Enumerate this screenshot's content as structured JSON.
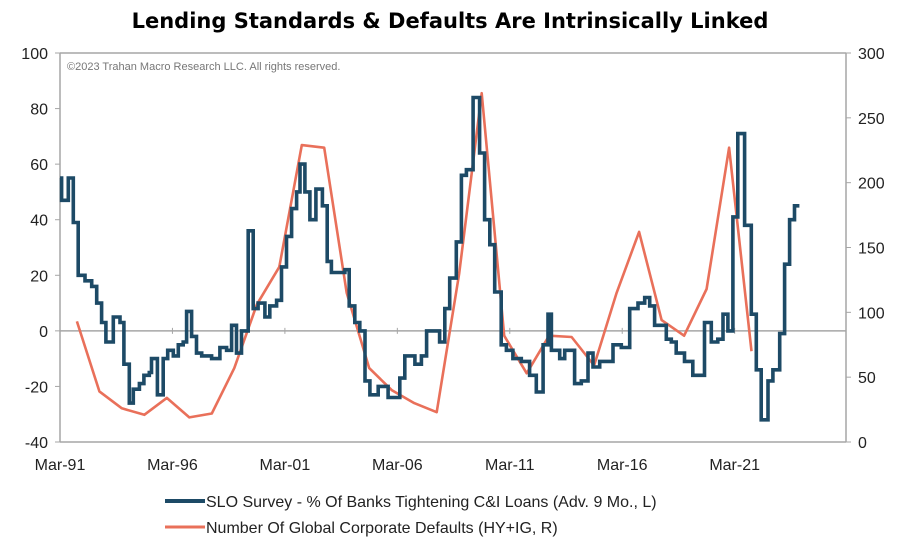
{
  "chart_data": {
    "type": "line",
    "title": "Lending Standards & Defaults Are Intrinsically Linked",
    "copyright": "©2023 Trahan Macro Research LLC. All rights reserved.",
    "x_ticks": [
      "Mar-91",
      "Mar-96",
      "Mar-01",
      "Mar-06",
      "Mar-11",
      "Mar-16",
      "Mar-21"
    ],
    "x_tick_years": [
      1991.25,
      1996.25,
      2001.25,
      2006.25,
      2011.25,
      2016.25,
      2021.25
    ],
    "xlim": [
      1991.25,
      2026.2
    ],
    "y_left": {
      "ticks": [
        "100",
        "80",
        "60",
        "40",
        "20",
        "0",
        "-20",
        "-40"
      ],
      "lim": [
        -40,
        100
      ]
    },
    "y_right": {
      "ticks": [
        "300",
        "250",
        "200",
        "150",
        "100",
        "50",
        "0"
      ],
      "lim": [
        0,
        300
      ]
    },
    "grid": false,
    "legend_position": "bottom",
    "series": [
      {
        "name": "SLO Survey - % Of Banks Tightening C&I Loans (Adv. 9 Mo., L)",
        "axis": "left",
        "style": "step",
        "color": "#1d4a66",
        "x": [
          1991.25,
          1991.32,
          1991.62,
          1991.84,
          1992.06,
          1992.36,
          1992.66,
          1992.88,
          1993.1,
          1993.29,
          1993.62,
          1993.92,
          1994.09,
          1994.33,
          1994.51,
          1994.78,
          1994.98,
          1995.22,
          1995.32,
          1995.58,
          1995.84,
          1996.04,
          1996.29,
          1996.51,
          1996.73,
          1996.88,
          1997.1,
          1997.32,
          1997.55,
          1997.99,
          1998.36,
          1998.66,
          1998.88,
          1999.1,
          1999.32,
          1999.62,
          1999.84,
          2000.06,
          2000.36,
          2000.58,
          2000.88,
          2001.1,
          2001.32,
          2001.55,
          2001.77,
          2001.92,
          2002.14,
          2002.36,
          2002.63,
          2002.92,
          2003.13,
          2003.32,
          2003.92,
          2004.11,
          2004.36,
          2004.58,
          2004.81,
          2005.03,
          2005.4,
          2005.84,
          2006.36,
          2006.58,
          2007.03,
          2007.32,
          2007.55,
          2008.13,
          2008.36,
          2008.58,
          2008.87,
          2009.1,
          2009.32,
          2009.62,
          2009.91,
          2010.13,
          2010.36,
          2010.58,
          2010.87,
          2011.1,
          2011.39,
          2011.76,
          2012.13,
          2012.43,
          2012.73,
          2012.95,
          2013.1,
          2013.47,
          2013.69,
          2014.13,
          2014.43,
          2014.73,
          2014.95,
          2015.25,
          2015.84,
          2016.21,
          2016.58,
          2016.95,
          2017.25,
          2017.47,
          2017.69,
          2018.21,
          2018.43,
          2018.65,
          2019.02,
          2019.39,
          2019.91,
          2020.21,
          2020.5,
          2020.73,
          2020.95,
          2021.17,
          2021.39,
          2021.69,
          2021.99,
          2022.21,
          2022.43,
          2022.73,
          2022.95,
          2023.25,
          2023.47,
          2023.69,
          2023.91,
          2024.13
        ],
        "values": [
          55,
          47,
          55,
          39,
          20,
          18,
          16,
          10,
          3,
          -4,
          5,
          3,
          -12,
          -26,
          -21,
          -19,
          -16,
          -15,
          -10,
          -23,
          -10,
          -7,
          -9,
          -5,
          -4,
          7,
          -2,
          -8,
          -9,
          -10,
          -6,
          -7,
          2,
          -8,
          0,
          36,
          8,
          10,
          5,
          9,
          11,
          23,
          34,
          44,
          50,
          60,
          50,
          40,
          51,
          45,
          25,
          21,
          22,
          9,
          3,
          0,
          -18,
          -23,
          -20,
          -24,
          -17,
          -9,
          -12,
          -9,
          0,
          -4,
          8,
          19,
          32,
          56,
          58,
          84,
          64,
          40,
          31,
          14,
          -5,
          -7,
          -10,
          -11,
          -16,
          -22,
          -5,
          6,
          -7,
          -10,
          -7,
          -19,
          -18,
          -8,
          -13,
          -11,
          -5,
          -6,
          8,
          10,
          12,
          9,
          2,
          -3,
          -4,
          -8,
          -11,
          -16,
          3,
          -4,
          -3,
          6,
          0,
          41,
          71,
          38,
          6,
          -14,
          -32,
          -18,
          -14,
          -1,
          24,
          40,
          45,
          45
        ]
      },
      {
        "name": "Number Of Global Corporate Defaults (HY+IG, R)",
        "axis": "right",
        "style": "line",
        "color": "#e9705a",
        "x": [
          1992,
          1993,
          1994,
          1995,
          1996,
          1997,
          1998,
          1999,
          2000,
          2001,
          2002,
          2003,
          2004,
          2005,
          2006,
          2007,
          2008,
          2009,
          2010,
          2011,
          2012,
          2013,
          2014,
          2015,
          2016,
          2017,
          2018,
          2019,
          2020,
          2021,
          2022
        ],
        "values": [
          93,
          39,
          26,
          21,
          34,
          19,
          22,
          57,
          106,
          135,
          229,
          227,
          115,
          57,
          40,
          30,
          23,
          130,
          269,
          82,
          53,
          82,
          81,
          59,
          115,
          162,
          94,
          82,
          118,
          227,
          70
        ]
      }
    ]
  }
}
